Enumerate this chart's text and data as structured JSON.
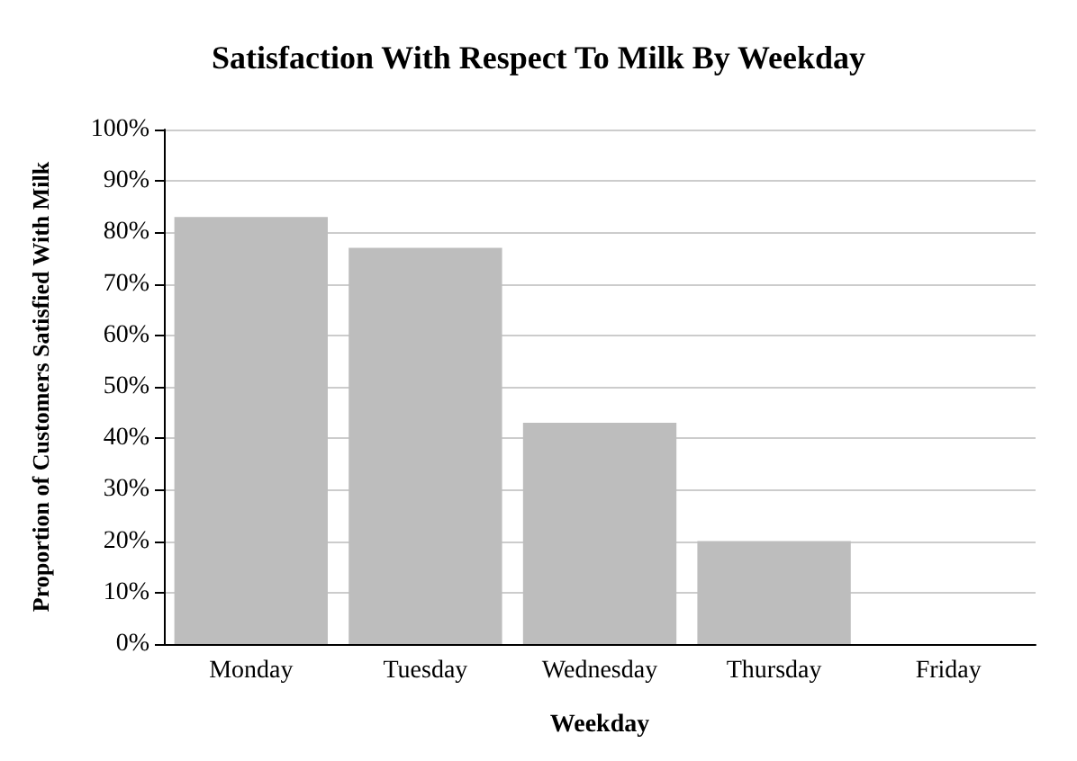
{
  "chart_data": {
    "type": "bar",
    "title": "Satisfaction With Respect To Milk By Weekday",
    "xlabel": "Weekday",
    "ylabel": "Proportion of Customers Satisfied With Milk",
    "categories": [
      "Monday",
      "Tuesday",
      "Wednesday",
      "Thursday",
      "Friday"
    ],
    "values": [
      83,
      77,
      43,
      20,
      0
    ],
    "color": "#bdbdbd",
    "ylim": [
      0,
      100
    ],
    "yticks": [
      {
        "value": 0,
        "label": "0%"
      },
      {
        "value": 10,
        "label": "10%"
      },
      {
        "value": 20,
        "label": "20%"
      },
      {
        "value": 30,
        "label": "30%"
      },
      {
        "value": 40,
        "label": "40%"
      },
      {
        "value": 50,
        "label": "50%"
      },
      {
        "value": 60,
        "label": "60%"
      },
      {
        "value": 70,
        "label": "70%"
      },
      {
        "value": 80,
        "label": "80%"
      },
      {
        "value": 90,
        "label": "90%"
      },
      {
        "value": 100,
        "label": "100%"
      }
    ],
    "grid": "y"
  }
}
